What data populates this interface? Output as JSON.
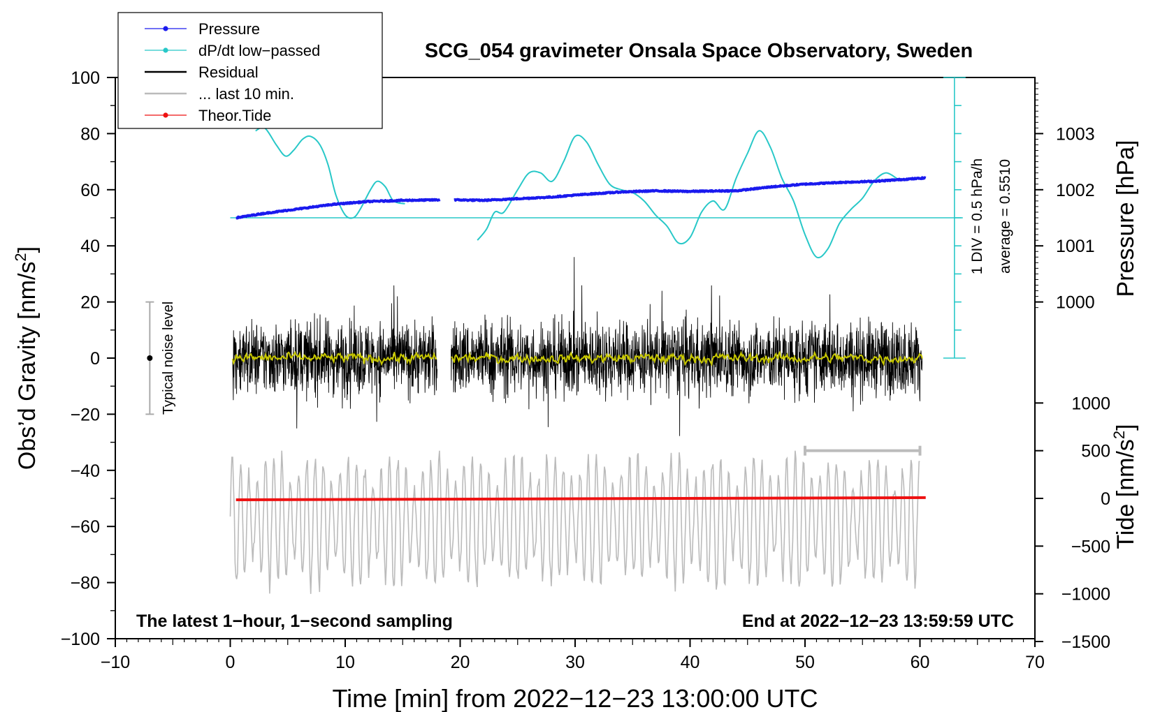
{
  "chart_data": {
    "type": "line",
    "title": "SCG_054 gravimeter Onsala Space Observatory, Sweden",
    "xlabel": "Time [min] from 2022−12−23 13:00:00 UTC",
    "ylabel_left": "Obs’d Gravity [nm/s",
    "ylabel_left_sup": "2",
    "ylabel_left_close": "]",
    "ylabel_pressure": "Pressure [hPa]",
    "ylabel_tide": "Tide [nm/s",
    "ylabel_tide_sup": "2",
    "ylabel_tide_close": "]",
    "xlim": [
      -10,
      70
    ],
    "ylim": [
      -100,
      100
    ],
    "x_ticks": [
      {
        "v": -10,
        "label": "−10"
      },
      {
        "v": 0,
        "label": "0"
      },
      {
        "v": 10,
        "label": "10"
      },
      {
        "v": 20,
        "label": "20"
      },
      {
        "v": 30,
        "label": "30"
      },
      {
        "v": 40,
        "label": "40"
      },
      {
        "v": 50,
        "label": "50"
      },
      {
        "v": 60,
        "label": "60"
      },
      {
        "v": 70,
        "label": "70"
      }
    ],
    "y_ticks": [
      {
        "v": 100,
        "label": "100"
      },
      {
        "v": 80,
        "label": "80"
      },
      {
        "v": 60,
        "label": "60"
      },
      {
        "v": 40,
        "label": "40"
      },
      {
        "v": 20,
        "label": "20"
      },
      {
        "v": 0,
        "label": "0"
      },
      {
        "v": -20,
        "label": "−20"
      },
      {
        "v": -40,
        "label": "−40"
      },
      {
        "v": -60,
        "label": "−60"
      },
      {
        "v": -80,
        "label": "−80"
      },
      {
        "v": -100,
        "label": "−100"
      }
    ],
    "pressure_axis": {
      "ticks": [
        {
          "hpa": 1003,
          "label": "1003"
        },
        {
          "hpa": 1002,
          "label": "1002"
        },
        {
          "hpa": 1001,
          "label": "1001"
        },
        {
          "hpa": 1000,
          "label": "1000"
        }
      ],
      "map": {
        "hpa_ref": 1002,
        "y_ref": 60,
        "y_per_hpa": 20
      }
    },
    "tide_axis": {
      "ticks": [
        {
          "v": 1000,
          "label": "1000"
        },
        {
          "v": 500,
          "label": "500"
        },
        {
          "v": 0,
          "label": "0"
        },
        {
          "v": -500,
          "label": "−500"
        },
        {
          "v": -1000,
          "label": "−1000"
        },
        {
          "v": -1500,
          "label": "−1500"
        }
      ],
      "map": {
        "tide_ref": 0,
        "y_ref": -50,
        "y_per_unit": 0.034
      }
    },
    "legend": {
      "placement": "top-left",
      "items": [
        {
          "label": "Pressure",
          "color": "#1a1aee",
          "marker": true
        },
        {
          "label": "dP/dt low−passed",
          "color": "#28c8c8",
          "marker": true
        },
        {
          "label": "Residual",
          "color": "#000000",
          "marker": false
        },
        {
          "label": "... last 10 min.",
          "color": "#bbbbbb",
          "marker": false
        },
        {
          "label": "Theor.Tide",
          "color": "#ee1111",
          "marker": true
        }
      ]
    },
    "series": [
      {
        "name": "Pressure",
        "color": "#1a1aee",
        "unit": "hPa",
        "x": [
          0.5,
          3,
          6,
          9,
          12,
          15,
          18.3,
          19.5,
          22,
          25,
          28,
          31,
          34,
          37,
          40,
          43,
          44,
          47,
          50,
          53,
          56,
          60.5
        ],
        "values": [
          1001.5,
          1001.58,
          1001.66,
          1001.74,
          1001.79,
          1001.81,
          1001.82,
          1001.82,
          1001.81,
          1001.84,
          1001.87,
          1001.92,
          1001.96,
          1001.98,
          1001.97,
          1001.98,
          1001.98,
          1002.05,
          1002.1,
          1002.13,
          1002.15,
          1002.21
        ],
        "gaps": [
          [
            18.3,
            19.5
          ]
        ]
      },
      {
        "name": "dP/dt low-passed",
        "color": "#28c8c8",
        "unit": "y-units",
        "segments": [
          {
            "x": [
              2.2,
              3,
              4,
              4.8,
              5.5,
              6.3,
              7,
              7.8,
              8.5,
              9.2,
              10,
              10.7,
              11.3,
              12.2,
              12.8,
              13.5,
              14.2,
              15.2
            ],
            "y": [
              81,
              82,
              76,
              72,
              74,
              78,
              79,
              76,
              69,
              58,
              51,
              50,
              53,
              60,
              63,
              61,
              56,
              55
            ]
          },
          {
            "x": [
              21.5,
              22.3,
              23,
              23.8,
              25,
              26,
              27,
              28,
              29,
              30,
              31,
              32,
              33,
              34,
              35,
              36,
              37,
              38,
              39,
              40,
              41,
              42,
              43,
              44,
              45,
              46,
              47,
              48,
              49,
              50,
              51,
              52,
              53,
              54,
              55,
              56,
              57,
              58
            ],
            "y": [
              42,
              46,
              52,
              52,
              60,
              66,
              66,
              63,
              70,
              79,
              77,
              69,
              62,
              60,
              59,
              56,
              51,
              47,
              41,
              43,
              52,
              56,
              53,
              64,
              73,
              81,
              75,
              64,
              56,
              44,
              36,
              39,
              48,
              53,
              57,
              63,
              66,
              64
            ]
          }
        ]
      },
      {
        "name": "Residual",
        "color": "#000000",
        "unit": "nm/s2",
        "x_range": [
          0.2,
          60.2
        ],
        "gaps": [
          [
            18.0,
            19.2
          ]
        ],
        "typical_range": [
          -30,
          36
        ]
      },
      {
        "name": "Residual smoothed",
        "color": "#c8c800",
        "unit": "nm/s2",
        "x_range": [
          0.2,
          60.2
        ],
        "level": 0,
        "amplitude": 3
      },
      {
        "name": "... last 10 min.",
        "color": "#bbbbbb",
        "unit": "nm/s2",
        "x_range": [
          0.0,
          60.0
        ],
        "center": -58,
        "typical_range": [
          -87,
          -33
        ]
      },
      {
        "name": "Theor.Tide",
        "color": "#ee1111",
        "unit": "nm/s2 (tide axis)",
        "x": [
          0.5,
          60.5
        ],
        "values": [
          -15,
          8
        ]
      }
    ],
    "dpdt_scale": {
      "baseline_y": 50,
      "top_y": 100,
      "bottom_y": 0,
      "tick_step": 10,
      "x": 63,
      "label1": "1 DIV = 0.5 hPa/h",
      "label2": "average = 0.5510"
    },
    "noise_bar": {
      "x": -7,
      "y_low": -20,
      "y_high": 20,
      "label": "Typical noise level"
    },
    "last10_bar": {
      "x_start": 50,
      "x_end": 60,
      "y": -33
    },
    "annotation_left": "The latest 1−hour, 1−second sampling",
    "annotation_right": "End at 2022−12−23 13:59:59 UTC"
  }
}
